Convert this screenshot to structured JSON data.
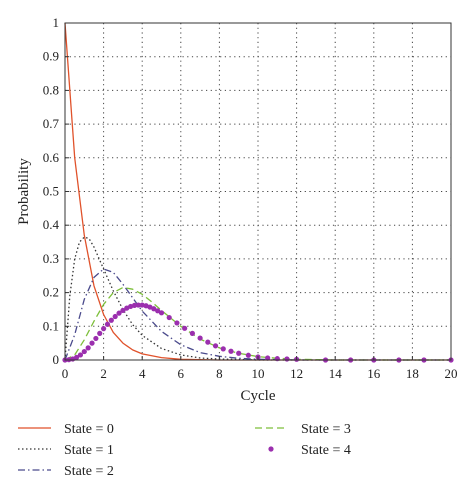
{
  "chart_data": {
    "type": "line",
    "xlabel": "Cycle",
    "ylabel": "Probability",
    "xlim": [
      0,
      20
    ],
    "ylim": [
      0,
      1
    ],
    "xticks": [
      0,
      2,
      4,
      6,
      8,
      10,
      12,
      14,
      16,
      18,
      20
    ],
    "xtick_labels": [
      "0",
      "2",
      "4",
      "6",
      "8",
      "10",
      "12",
      "14",
      "16",
      "18",
      "20"
    ],
    "yticks": [
      0,
      0.1,
      0.2,
      0.3,
      0.4,
      0.5,
      0.6,
      0.7,
      0.8,
      0.9,
      1
    ],
    "ytick_labels": [
      "0",
      "0.1",
      "0.2",
      "0.3",
      "0.4",
      "0.5",
      "0.6",
      "0.7",
      "0.8",
      "0.9",
      "1"
    ],
    "grid": true,
    "legend_position": "bottom",
    "series": [
      {
        "name": "State = 0",
        "color": "#e0522b",
        "style": "solid",
        "x": [
          0,
          0.5,
          1,
          1.5,
          2,
          2.5,
          3,
          3.5,
          4,
          5,
          6,
          7,
          8,
          10,
          12,
          15,
          20
        ],
        "y": [
          1.0,
          0.6,
          0.37,
          0.22,
          0.135,
          0.082,
          0.05,
          0.03,
          0.018,
          0.007,
          0.002,
          0.001,
          0.0,
          0.0,
          0.0,
          0.0,
          0.0
        ]
      },
      {
        "name": "State = 1",
        "color": "#333333",
        "style": "dotted",
        "x": [
          0,
          0.25,
          0.5,
          0.75,
          1,
          1.25,
          1.5,
          2,
          2.5,
          3,
          3.5,
          4,
          5,
          6,
          7,
          8,
          10,
          12,
          15,
          20
        ],
        "y": [
          0.0,
          0.19,
          0.3,
          0.35,
          0.365,
          0.36,
          0.335,
          0.27,
          0.205,
          0.15,
          0.105,
          0.073,
          0.034,
          0.015,
          0.006,
          0.003,
          0.0,
          0.0,
          0.0,
          0.0
        ]
      },
      {
        "name": "State = 2",
        "color": "#4a4a8c",
        "style": "dashdot",
        "x": [
          0,
          0.5,
          1,
          1.5,
          2,
          2.5,
          3,
          3.5,
          4,
          5,
          6,
          7,
          8,
          9,
          10,
          12,
          15,
          20
        ],
        "y": [
          0.0,
          0.075,
          0.18,
          0.245,
          0.27,
          0.26,
          0.225,
          0.185,
          0.145,
          0.085,
          0.045,
          0.022,
          0.011,
          0.005,
          0.002,
          0.0,
          0.0,
          0.0
        ]
      },
      {
        "name": "State = 3",
        "color": "#7dbf3a",
        "style": "dashed",
        "x": [
          0,
          0.5,
          1,
          1.5,
          2,
          2.5,
          3,
          3.5,
          4,
          4.5,
          5,
          6,
          7,
          8,
          9,
          10,
          11,
          12,
          14,
          20
        ],
        "y": [
          0.0,
          0.015,
          0.06,
          0.115,
          0.165,
          0.2,
          0.215,
          0.21,
          0.195,
          0.172,
          0.147,
          0.1,
          0.062,
          0.036,
          0.02,
          0.01,
          0.005,
          0.002,
          0.0,
          0.0
        ]
      },
      {
        "name": "State = 4",
        "color": "#9b2fae",
        "style": "markers",
        "x": [
          0,
          0.2,
          0.4,
          0.6,
          0.8,
          1.0,
          1.2,
          1.4,
          1.6,
          1.8,
          2.0,
          2.2,
          2.4,
          2.6,
          2.8,
          3.0,
          3.2,
          3.4,
          3.6,
          3.8,
          4.0,
          4.2,
          4.4,
          4.6,
          4.8,
          5.0,
          5.4,
          5.8,
          6.2,
          6.6,
          7.0,
          7.4,
          7.8,
          8.2,
          8.6,
          9.0,
          9.5,
          10.0,
          10.5,
          11.0,
          11.5,
          12.0,
          13.5,
          14.8,
          16.0,
          17.3,
          18.6,
          20.0
        ],
        "y": [
          0.0,
          0.001,
          0.003,
          0.008,
          0.015,
          0.025,
          0.036,
          0.05,
          0.064,
          0.079,
          0.093,
          0.106,
          0.118,
          0.129,
          0.139,
          0.147,
          0.154,
          0.159,
          0.162,
          0.163,
          0.163,
          0.161,
          0.157,
          0.152,
          0.146,
          0.14,
          0.126,
          0.11,
          0.094,
          0.079,
          0.065,
          0.053,
          0.042,
          0.033,
          0.026,
          0.02,
          0.014,
          0.009,
          0.006,
          0.004,
          0.003,
          0.002,
          0.0,
          0.0,
          0.0,
          0.0,
          0.0,
          0.0
        ]
      }
    ]
  }
}
